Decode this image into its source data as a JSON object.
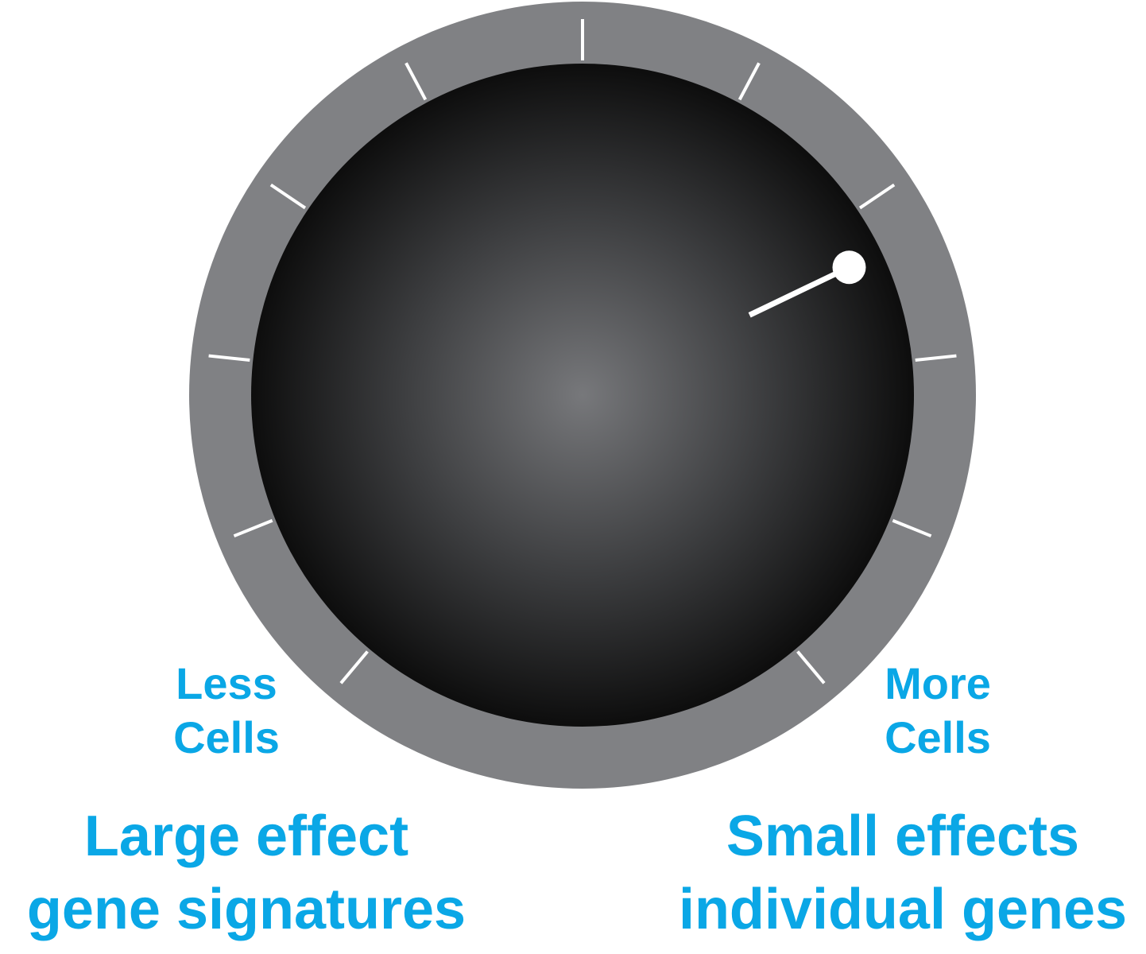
{
  "dial": {
    "ring_color": "#808184",
    "knob_center_color": "#77787b",
    "knob_edge_color": "#0d0d0d",
    "tick_color": "#ffffff",
    "tick_count": 11,
    "pointer_color": "#ffffff",
    "pointer_setting": 0.73
  },
  "labels": {
    "text_color": "#0aa7e6",
    "less_cells": {
      "line1": "Less",
      "line2": "Cells"
    },
    "more_cells": {
      "line1": "More",
      "line2": "Cells"
    },
    "large_effect": {
      "line1": "Large effect",
      "line2": "gene signatures"
    },
    "small_effects": {
      "line1": "Small effects",
      "line2": "individual genes"
    }
  }
}
